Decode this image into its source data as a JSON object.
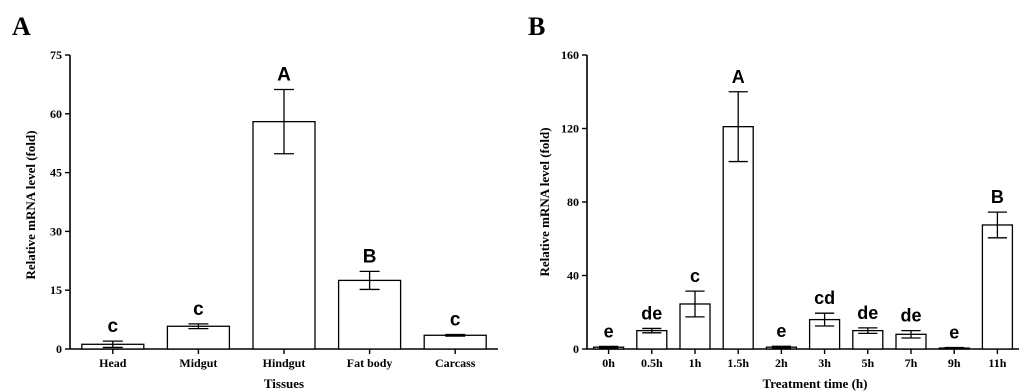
{
  "panels": [
    {
      "letter": "A",
      "chart_data": {
        "type": "bar",
        "categories": [
          "Head",
          "Midgut",
          "Hindgut",
          "Fat body",
          "Carcass"
        ],
        "values": [
          1.2,
          5.8,
          58.0,
          17.5,
          3.5
        ],
        "errors": [
          0.8,
          0.6,
          8.2,
          2.3,
          0.2
        ],
        "significance": [
          "c",
          "c",
          "A",
          "B",
          "c"
        ],
        "xlabel": "Tissues",
        "ylabel": "Relative mRNA level (fold)",
        "ylim": [
          0,
          75
        ],
        "yticks": [
          0,
          15,
          30,
          45,
          60,
          75
        ],
        "grid": false,
        "legend": "none"
      }
    },
    {
      "letter": "B",
      "chart_data": {
        "type": "bar",
        "categories": [
          "0h",
          "0.5h",
          "1h",
          "1.5h",
          "2h",
          "3h",
          "5h",
          "7h",
          "9h",
          "11h"
        ],
        "values": [
          1.0,
          10.0,
          24.5,
          121.0,
          1.0,
          16.0,
          10.0,
          8.0,
          0.5,
          67.5
        ],
        "errors": [
          0.4,
          1.2,
          7.0,
          19.0,
          0.5,
          3.5,
          1.5,
          2.0,
          0.3,
          7.0
        ],
        "significance": [
          "e",
          "de",
          "c",
          "A",
          "e",
          "cd",
          "de",
          "de",
          "e",
          "B"
        ],
        "xlabel": "Treatment time (h)",
        "ylabel": "Relative mRNA level (fold)",
        "ylim": [
          0,
          160
        ],
        "yticks": [
          0,
          40,
          80,
          120,
          160
        ],
        "grid": false,
        "legend": "none"
      }
    }
  ]
}
